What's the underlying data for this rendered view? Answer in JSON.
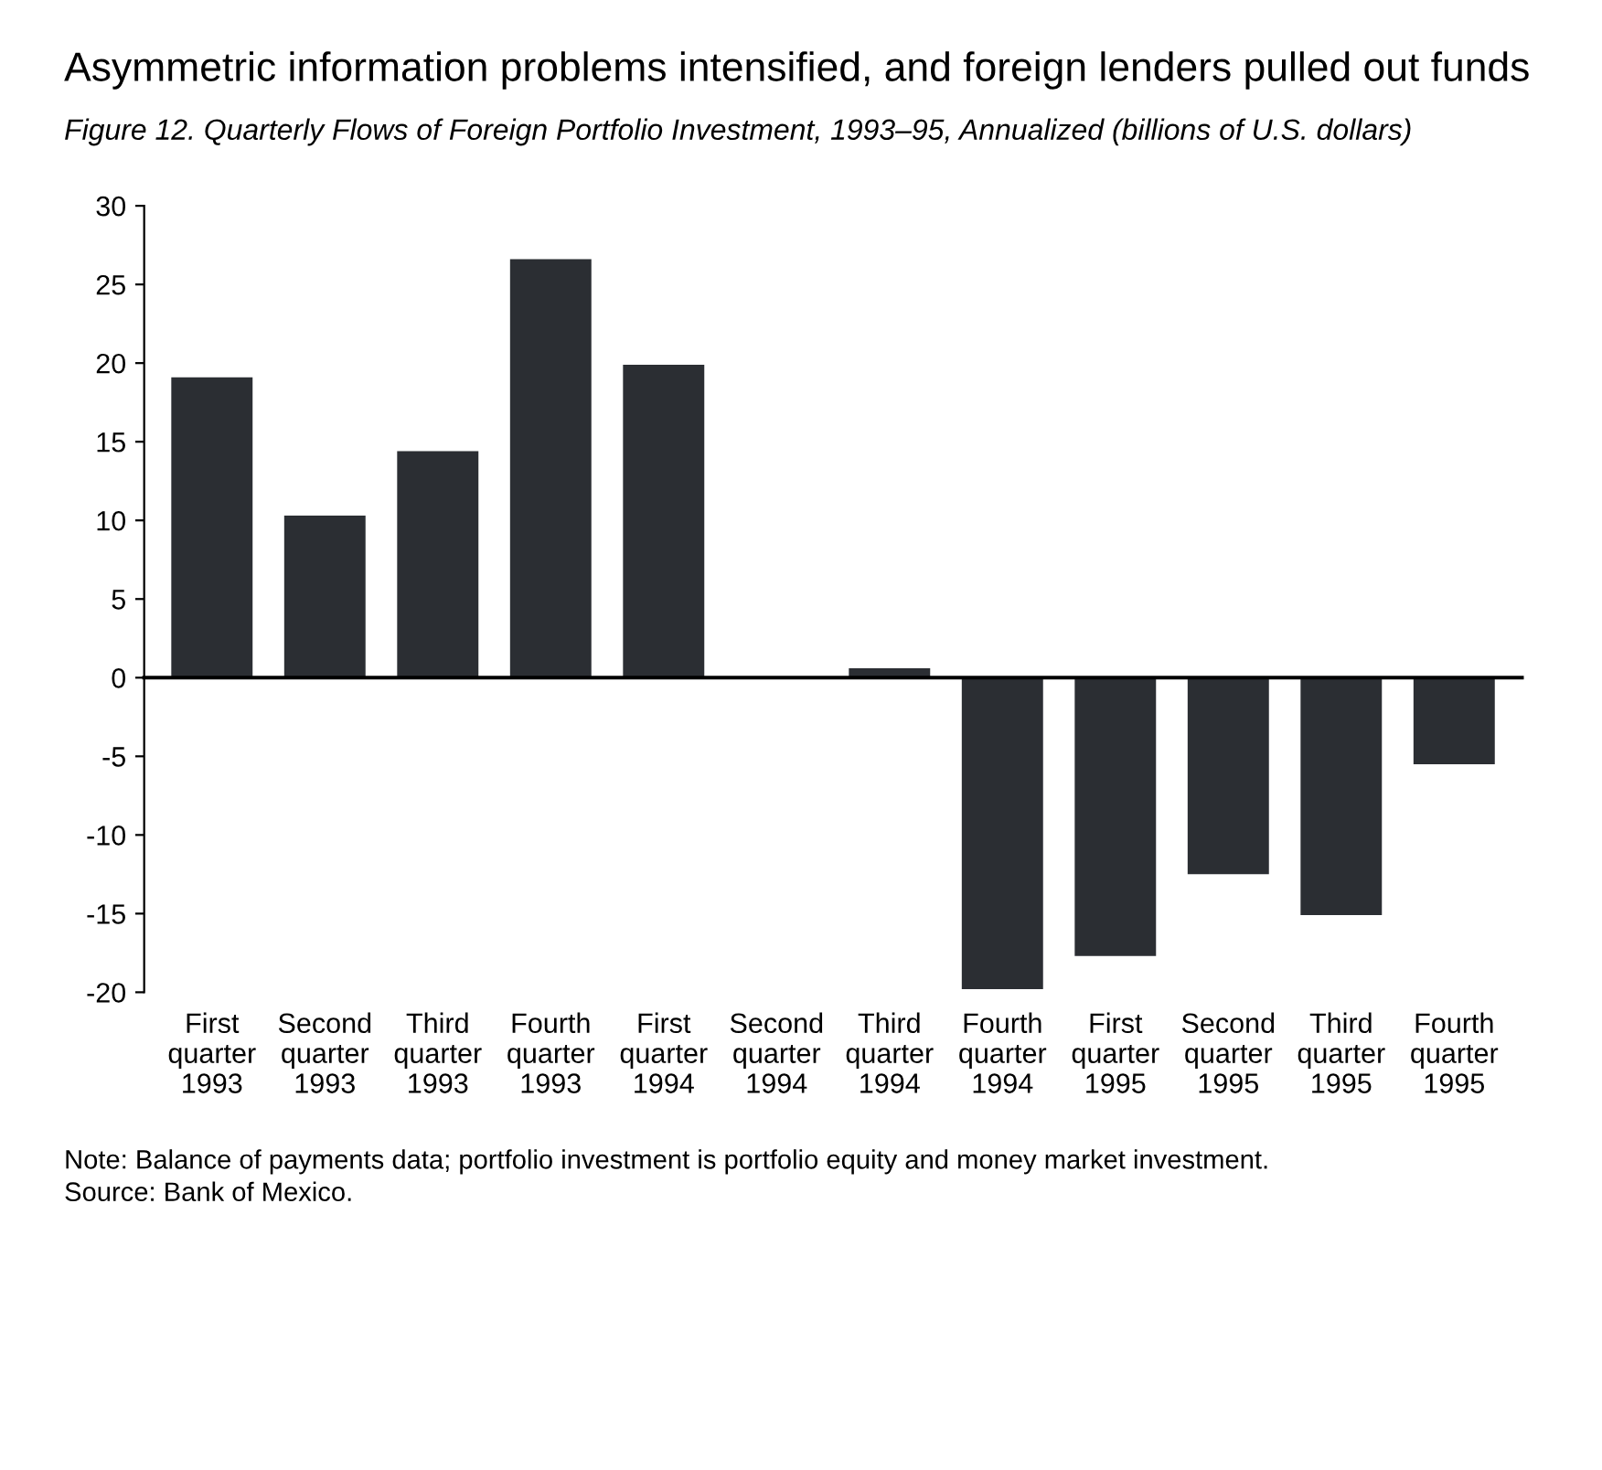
{
  "chart_data": {
    "type": "bar",
    "title": "Asymmetric information problems intensified, and foreign lenders pulled out funds",
    "subtitle": "Figure 12. Quarterly Flows of Foreign Portfolio Investment, 1993–95, Annualized (billions of U.S. dollars)",
    "categories": [
      "First\nquarter\n1993",
      "Second\nquarter\n1993",
      "Third\nquarter\n1993",
      "Fourth\nquarter\n1993",
      "First\nquarter\n1994",
      "Second\nquarter\n1994",
      "Third\nquarter\n1994",
      "Fourth\nquarter\n1994",
      "First\nquarter\n1995",
      "Second\nquarter\n1995",
      "Third\nquarter\n1995",
      "Fourth\nquarter\n1995"
    ],
    "values": [
      19.1,
      10.3,
      14.4,
      26.6,
      19.9,
      0,
      0.6,
      -19.8,
      -17.7,
      -12.5,
      -15.1,
      -5.5
    ],
    "color": "#2b2e33",
    "ylim": [
      -20,
      30
    ],
    "yticks": [
      -20,
      -15,
      -10,
      -5,
      0,
      5,
      10,
      15,
      20,
      25,
      30
    ],
    "annotations": [
      "Note: Balance of payments data; portfolio investment is portfolio equity and money market investment.",
      "Source: Bank of Mexico."
    ]
  }
}
